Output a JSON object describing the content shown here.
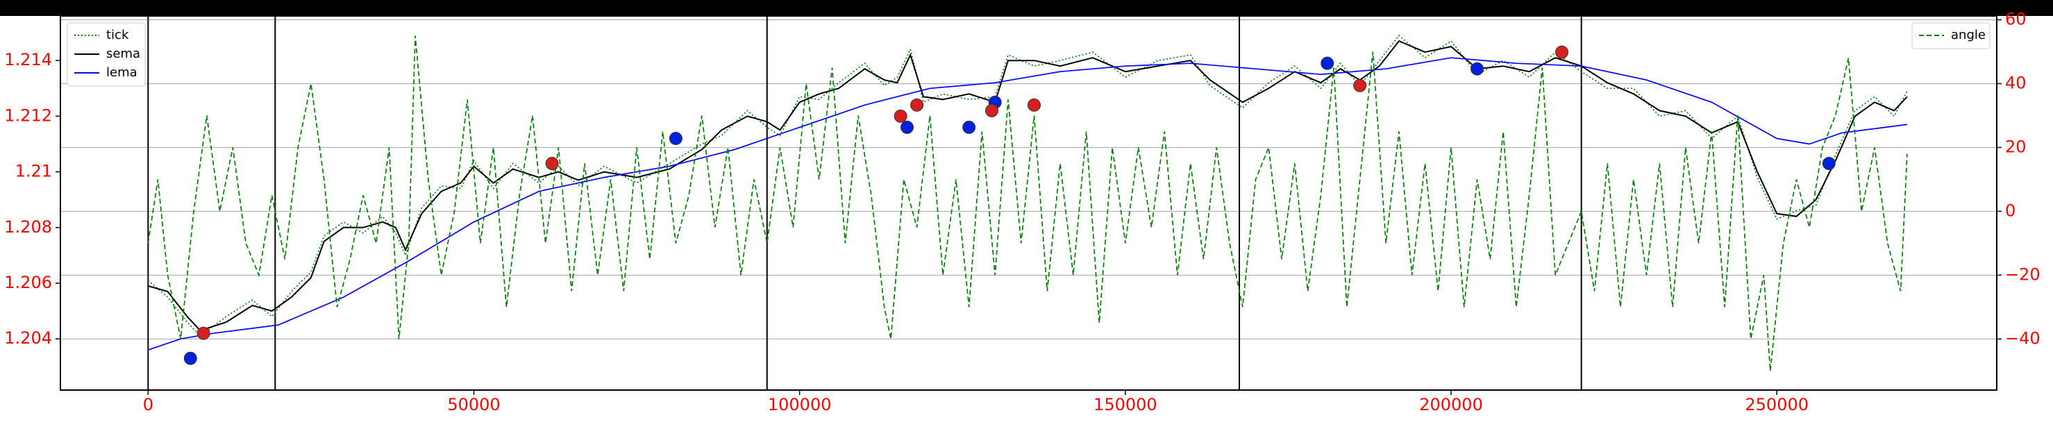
{
  "chart_data": {
    "type": "line",
    "xlim": [
      -13464,
      283760
    ],
    "xticks": [
      0,
      50000,
      100000,
      150000,
      200000,
      250000
    ],
    "ylim": [
      1.20216,
      1.2156
    ],
    "yticks": [
      1.204,
      1.206,
      1.208,
      1.21,
      1.212,
      1.214
    ],
    "y2lim": [
      -56,
      61.2
    ],
    "y2ticks": [
      60,
      40,
      20,
      {
        "value": 0,
        "label": "0"
      },
      {
        "value": -20,
        "label": "−20"
      },
      {
        "value": -40,
        "label": "−40"
      }
    ],
    "grid": "y2",
    "tick_label_color": "#ff0000",
    "vlines": [
      0,
      19500,
      95000,
      167500,
      220000
    ],
    "vline_color": "#000000",
    "legend": "upper left",
    "legend2": "upper right",
    "series": [
      {
        "name": "tick",
        "color": "#008000",
        "linestyle": "dotted",
        "x": [
          0,
          3000,
          6000,
          8000,
          12000,
          16000,
          19000,
          22000,
          25000,
          27000,
          30000,
          33000,
          36000,
          38000,
          39500,
          42000,
          45000,
          48000,
          50000,
          53000,
          56000,
          60000,
          63000,
          66000,
          70000,
          75000,
          80000,
          85000,
          88000,
          92000,
          95000,
          97000,
          100000,
          103000,
          106000,
          110000,
          113000,
          115000,
          117000,
          119000,
          122000,
          126000,
          130000,
          132000,
          136000,
          140000,
          145000,
          150000,
          155000,
          160000,
          163000,
          168000,
          172000,
          176000,
          180000,
          183000,
          186000,
          189000,
          192000,
          196000,
          200000,
          204000,
          208000,
          212000,
          216000,
          220000,
          224000,
          228000,
          232000,
          236000,
          240000,
          244000,
          247000,
          250000,
          253000,
          256000,
          259000,
          262000,
          265000,
          268000,
          270000
        ],
        "values": [
          1.2061,
          1.2055,
          1.2046,
          1.2041,
          1.2048,
          1.2054,
          1.2048,
          1.2057,
          1.2064,
          1.2077,
          1.2082,
          1.2078,
          1.2084,
          1.2078,
          1.207,
          1.2087,
          1.2095,
          1.2094,
          1.2104,
          1.2094,
          1.2103,
          1.2096,
          1.2102,
          1.2095,
          1.2102,
          1.2096,
          1.2103,
          1.211,
          1.2113,
          1.2122,
          1.2116,
          1.2113,
          1.2127,
          1.2126,
          1.2132,
          1.2139,
          1.2131,
          1.2134,
          1.2144,
          1.2125,
          1.2128,
          1.2126,
          1.2127,
          1.2142,
          1.2138,
          1.214,
          1.2143,
          1.2134,
          1.214,
          1.2142,
          1.2131,
          1.2123,
          1.2132,
          1.2138,
          1.213,
          1.2139,
          1.2131,
          1.214,
          1.2149,
          1.2141,
          1.2147,
          1.2135,
          1.214,
          1.2134,
          1.2143,
          1.2136,
          1.213,
          1.213,
          1.212,
          1.2122,
          1.2112,
          1.212,
          1.2098,
          1.2083,
          1.2086,
          1.2088,
          1.2106,
          1.2122,
          1.2127,
          1.212,
          1.2129
        ]
      },
      {
        "name": "sema",
        "color": "#000000",
        "linestyle": "solid",
        "x": [
          0,
          3000,
          6000,
          8000,
          12000,
          16000,
          19000,
          22000,
          25000,
          27000,
          30000,
          33000,
          36000,
          38000,
          39500,
          42000,
          45000,
          48000,
          50000,
          53000,
          56000,
          60000,
          63000,
          66000,
          70000,
          75000,
          80000,
          85000,
          88000,
          92000,
          95000,
          97000,
          100000,
          103000,
          106000,
          110000,
          113000,
          115000,
          117000,
          119000,
          122000,
          126000,
          130000,
          132000,
          136000,
          140000,
          145000,
          150000,
          155000,
          160000,
          163000,
          168000,
          172000,
          176000,
          180000,
          183000,
          186000,
          189000,
          192000,
          196000,
          200000,
          204000,
          208000,
          212000,
          216000,
          220000,
          224000,
          228000,
          232000,
          236000,
          240000,
          244000,
          247000,
          250000,
          253000,
          256000,
          259000,
          262000,
          265000,
          268000,
          270000
        ],
        "values": [
          1.2059,
          1.2057,
          1.2048,
          1.2043,
          1.2046,
          1.2052,
          1.205,
          1.2055,
          1.2062,
          1.2075,
          1.208,
          1.208,
          1.2082,
          1.208,
          1.2072,
          1.2085,
          1.2093,
          1.2096,
          1.2102,
          1.2096,
          1.2101,
          1.2098,
          1.21,
          1.2097,
          1.21,
          1.2098,
          1.2101,
          1.2108,
          1.2115,
          1.212,
          1.2118,
          1.2115,
          1.2125,
          1.2128,
          1.213,
          1.2137,
          1.2133,
          1.2132,
          1.2142,
          1.2127,
          1.2126,
          1.2128,
          1.2125,
          1.214,
          1.214,
          1.2138,
          1.2141,
          1.2136,
          1.2138,
          1.214,
          1.2133,
          1.2125,
          1.213,
          1.2136,
          1.2132,
          1.2137,
          1.2133,
          1.2138,
          1.2147,
          1.2143,
          1.2145,
          1.2137,
          1.2138,
          1.2136,
          1.2141,
          1.2138,
          1.2132,
          1.2128,
          1.2122,
          1.212,
          1.2114,
          1.2118,
          1.21,
          1.2085,
          1.2084,
          1.209,
          1.2104,
          1.212,
          1.2125,
          1.2122,
          1.2127
        ]
      },
      {
        "name": "lema",
        "color": "#0000ff",
        "linestyle": "solid",
        "x": [
          0,
          5000,
          10000,
          20000,
          30000,
          40000,
          50000,
          60000,
          70000,
          80000,
          90000,
          100000,
          110000,
          120000,
          130000,
          140000,
          150000,
          160000,
          170000,
          180000,
          190000,
          200000,
          210000,
          220000,
          230000,
          240000,
          250000,
          255000,
          260000,
          270000
        ],
        "values": [
          1.2036,
          1.204,
          1.2042,
          1.2045,
          1.2055,
          1.2068,
          1.2082,
          1.2093,
          1.2098,
          1.2102,
          1.2108,
          1.2116,
          1.2124,
          1.213,
          1.2132,
          1.2136,
          1.2138,
          1.2139,
          1.2137,
          1.2135,
          1.2137,
          1.2141,
          1.2139,
          1.2138,
          1.2133,
          1.2125,
          1.2112,
          1.211,
          1.2114,
          1.2117
        ]
      },
      {
        "type": "scatter",
        "color": "#0022dd",
        "x": [
          6500,
          81000,
          116500,
          126000,
          130000,
          181000,
          204000,
          258000
        ],
        "values": [
          1.2033,
          1.2112,
          1.2116,
          1.2116,
          1.2125,
          1.2139,
          1.2137,
          1.2103
        ]
      },
      {
        "type": "scatter",
        "color": "#d62020",
        "x": [
          8500,
          62000,
          115500,
          118000,
          129500,
          136000,
          186000,
          217000
        ],
        "values": [
          1.2042,
          1.2103,
          1.212,
          1.2124,
          1.2122,
          1.2124,
          1.2131,
          1.2143
        ]
      },
      {
        "name": "angle",
        "color": "#008000",
        "linestyle": "dashed",
        "axis": "y2",
        "x": [
          0,
          1500,
          3000,
          5000,
          7000,
          9000,
          11000,
          13000,
          15000,
          17000,
          19000,
          21000,
          23000,
          25000,
          27000,
          29000,
          31000,
          33000,
          35000,
          37000,
          38500,
          40000,
          41000,
          43000,
          45000,
          47000,
          49000,
          51000,
          53000,
          55000,
          57000,
          59000,
          61000,
          63000,
          65000,
          67000,
          69000,
          71000,
          73000,
          75000,
          77000,
          79000,
          81000,
          83000,
          85000,
          87000,
          89000,
          91000,
          93000,
          95000,
          97000,
          99000,
          101000,
          103000,
          105000,
          107000,
          109000,
          111000,
          113000,
          114000,
          116000,
          118000,
          120000,
          122000,
          124000,
          126000,
          128000,
          130000,
          132000,
          134000,
          136000,
          138000,
          140000,
          142000,
          144000,
          146000,
          148000,
          150000,
          152000,
          154000,
          156000,
          158000,
          160000,
          162000,
          164000,
          166000,
          168000,
          170000,
          172000,
          174000,
          176000,
          178000,
          180000,
          182000,
          184000,
          186000,
          188000,
          190000,
          192000,
          194000,
          196000,
          198000,
          200000,
          202000,
          204000,
          206000,
          208000,
          210000,
          212000,
          214000,
          216000,
          218000,
          220000,
          222000,
          224000,
          226000,
          228000,
          230000,
          232000,
          234000,
          236000,
          238000,
          240000,
          242000,
          244000,
          246000,
          248000,
          249000,
          251000,
          253000,
          255000,
          257000,
          259000,
          261000,
          263000,
          265000,
          267000,
          269000,
          270000
        ],
        "values": [
          -10,
          10,
          -20,
          -40,
          0,
          30,
          0,
          20,
          -10,
          -20,
          5,
          -15,
          20,
          40,
          10,
          -30,
          -15,
          5,
          -10,
          20,
          -40,
          -10,
          55,
          10,
          -20,
          0,
          35,
          -10,
          20,
          -30,
          5,
          30,
          -10,
          20,
          -25,
          15,
          -20,
          10,
          -25,
          20,
          -15,
          25,
          -10,
          5,
          30,
          -5,
          20,
          -20,
          10,
          -10,
          20,
          -5,
          40,
          10,
          45,
          -10,
          30,
          5,
          -30,
          -40,
          10,
          -5,
          30,
          -20,
          10,
          -30,
          25,
          -20,
          35,
          -10,
          30,
          -25,
          15,
          -20,
          25,
          -35,
          20,
          -10,
          20,
          -5,
          25,
          -20,
          15,
          -15,
          20,
          -10,
          -30,
          10,
          20,
          -15,
          15,
          -25,
          5,
          45,
          -30,
          10,
          50,
          -10,
          25,
          -20,
          15,
          -25,
          20,
          -30,
          10,
          -15,
          25,
          -30,
          5,
          45,
          -20,
          -10,
          0,
          -25,
          15,
          -30,
          10,
          -20,
          15,
          -30,
          20,
          -10,
          25,
          -30,
          30,
          -40,
          -20,
          -50,
          -10,
          10,
          -5,
          20,
          30,
          48,
          0,
          20,
          -10,
          -25,
          18
        ]
      }
    ]
  }
}
